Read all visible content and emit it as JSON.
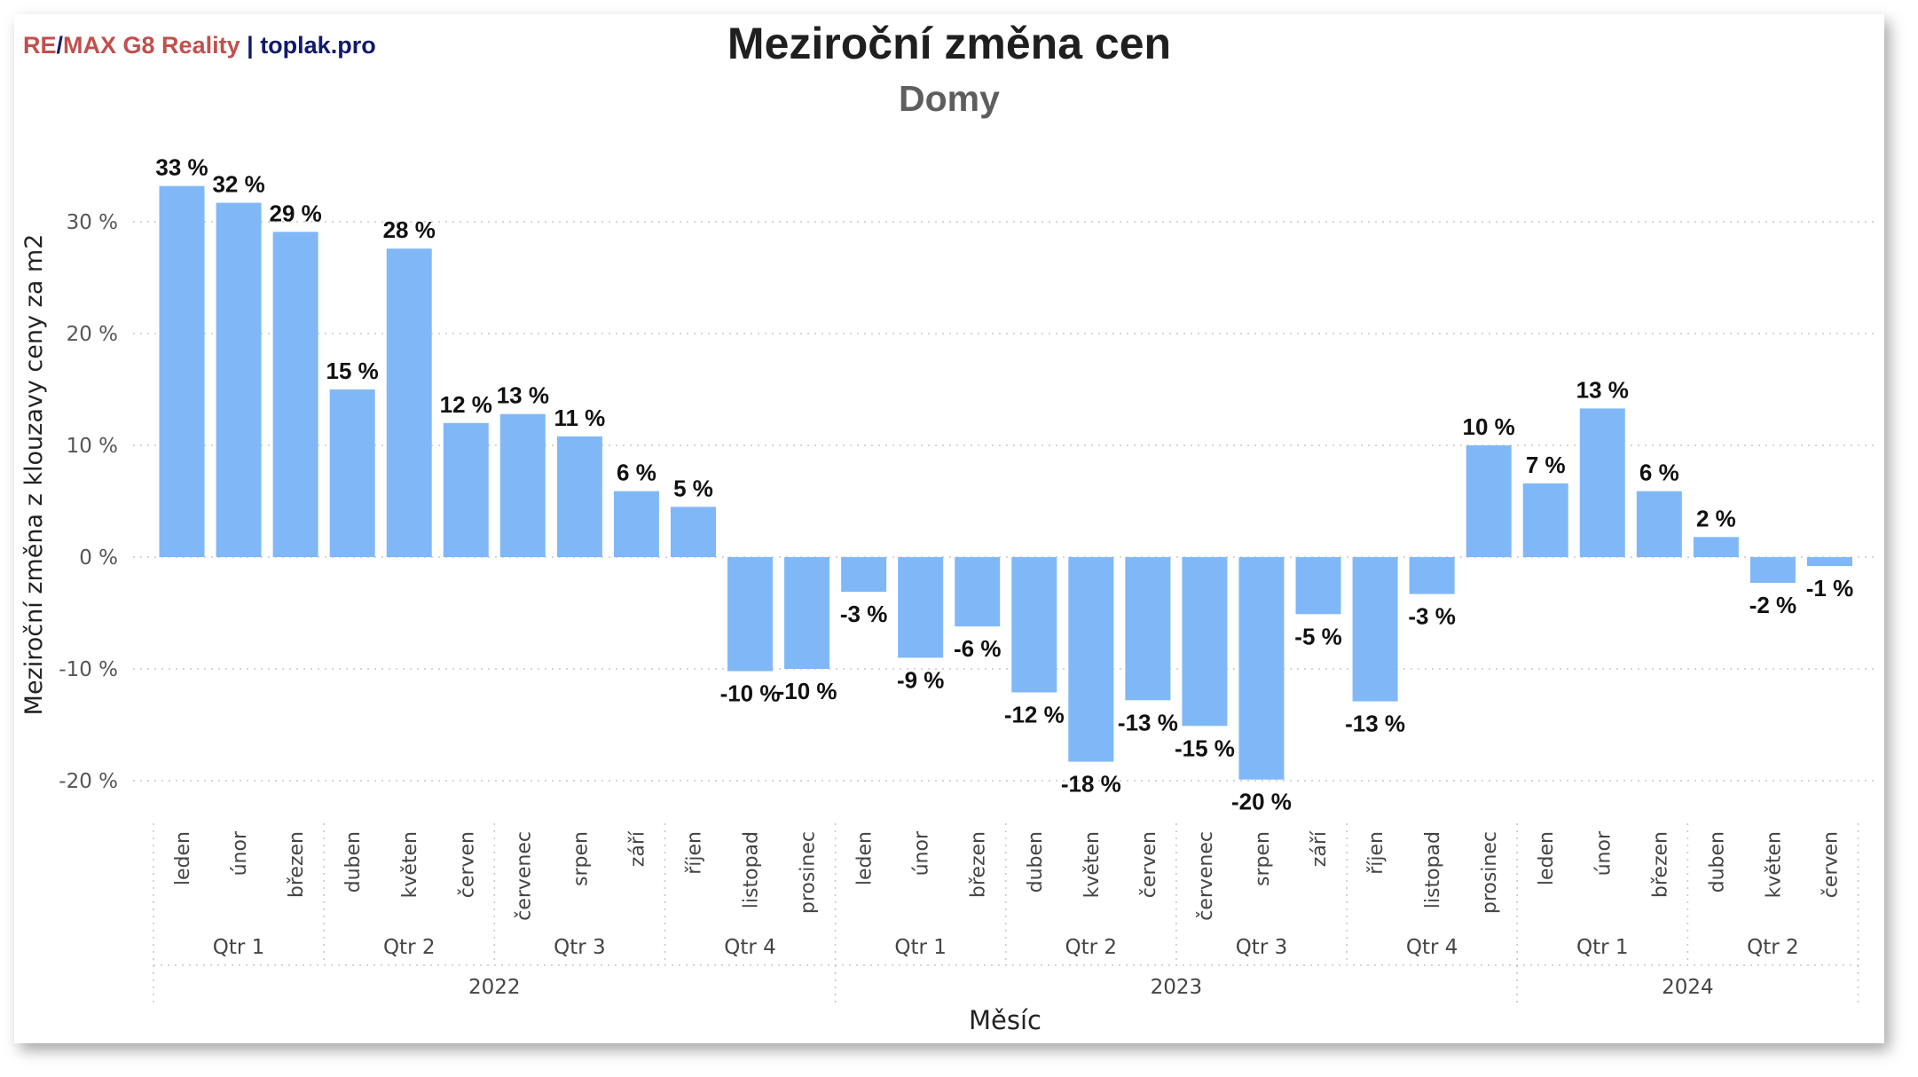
{
  "brand": {
    "part1": "RE",
    "slash": "/",
    "part2": "MAX G8 Reality",
    "sep": "|",
    "site": "toplak.pro"
  },
  "chart_data": {
    "type": "bar",
    "title": "Meziroční změna cen",
    "subtitle": "Domy",
    "xlabel": "Měsíc",
    "ylabel": "Meziroční změna z klouzavy ceny za m2",
    "ylim": [
      -22,
      36
    ],
    "yticks": [
      -20,
      -10,
      0,
      10,
      20,
      30
    ],
    "ytick_labels": [
      "-20 %",
      "-10 %",
      "0 %",
      "10 %",
      "20 %",
      "30 %"
    ],
    "grid": true,
    "bar_color": "#80b8f7",
    "categories": [
      "leden",
      "únor",
      "březen",
      "duben",
      "květen",
      "červen",
      "červenec",
      "srpen",
      "září",
      "říjen",
      "listopad",
      "prosinec",
      "leden",
      "únor",
      "březen",
      "duben",
      "květen",
      "červen",
      "červenec",
      "srpen",
      "září",
      "říjen",
      "listopad",
      "prosinec",
      "leden",
      "únor",
      "březen",
      "duben",
      "květen",
      "červen"
    ],
    "values": [
      33.2,
      31.7,
      29.1,
      15.0,
      27.6,
      12.0,
      12.8,
      10.8,
      5.9,
      4.5,
      -10.2,
      -10.0,
      -3.1,
      -9.0,
      -6.2,
      -12.1,
      -18.3,
      -12.8,
      -15.1,
      -19.9,
      -5.1,
      -12.9,
      -3.3,
      10.0,
      6.6,
      13.3,
      5.9,
      1.8,
      -2.3,
      -0.8
    ],
    "data_labels": [
      "33 %",
      "32 %",
      "29 %",
      "15 %",
      "28 %",
      "12 %",
      "13 %",
      "11 %",
      "6 %",
      "5 %",
      "-10 %",
      "-10 %",
      "-3 %",
      "-9 %",
      "-6 %",
      "-12 %",
      "-18 %",
      "-13 %",
      "-15 %",
      "-20 %",
      "-5 %",
      "-13 %",
      "-3 %",
      "10 %",
      "7 %",
      "13 %",
      "6 %",
      "2 %",
      "-2 %",
      "-1 %"
    ],
    "quarters": [
      {
        "label": "Qtr 1",
        "count": 3
      },
      {
        "label": "Qtr 2",
        "count": 3
      },
      {
        "label": "Qtr 3",
        "count": 3
      },
      {
        "label": "Qtr 4",
        "count": 3
      },
      {
        "label": "Qtr 1",
        "count": 3
      },
      {
        "label": "Qtr 2",
        "count": 3
      },
      {
        "label": "Qtr 3",
        "count": 3
      },
      {
        "label": "Qtr 4",
        "count": 3
      },
      {
        "label": "Qtr 1",
        "count": 3
      },
      {
        "label": "Qtr 2",
        "count": 3
      }
    ],
    "years": [
      {
        "label": "2022",
        "count": 12
      },
      {
        "label": "2023",
        "count": 12
      },
      {
        "label": "2024",
        "count": 6
      }
    ]
  }
}
